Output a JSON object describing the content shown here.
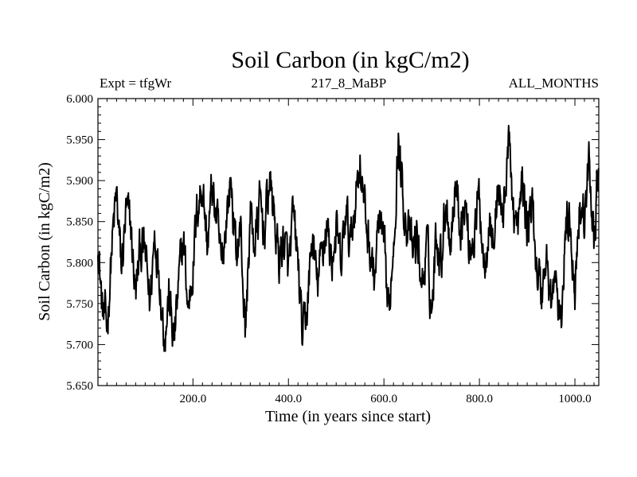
{
  "chart_data": {
    "type": "line",
    "title": "Soil Carbon (in kgC/m2)",
    "left_subtitle": "Expt = tfgWr",
    "center_subtitle": "217_8_MaBP",
    "right_subtitle": "ALL_MONTHS",
    "xlabel": "Time (in years since start)",
    "ylabel": "Soil Carbon (in kgC/m2)",
    "xlim": [
      1,
      1050
    ],
    "ylim": [
      5.65,
      6.0
    ],
    "x_ticks": [
      {
        "value": 200,
        "label": "200.0"
      },
      {
        "value": 400,
        "label": "400.0"
      },
      {
        "value": 600,
        "label": "600.0"
      },
      {
        "value": 800,
        "label": "800.0"
      },
      {
        "value": 1000,
        "label": "1000.0"
      }
    ],
    "y_ticks": [
      {
        "value": 5.65,
        "label": "5.650"
      },
      {
        "value": 5.7,
        "label": "5.700"
      },
      {
        "value": 5.75,
        "label": "5.750"
      },
      {
        "value": 5.8,
        "label": "5.800"
      },
      {
        "value": 5.85,
        "label": "5.850"
      },
      {
        "value": 5.9,
        "label": "5.900"
      },
      {
        "value": 5.95,
        "label": "5.950"
      },
      {
        "value": 6.0,
        "label": "6.000"
      }
    ],
    "series": [
      {
        "name": "Soil Carbon",
        "color": "#000000",
        "x": [
          1,
          10,
          20,
          30,
          40,
          50,
          60,
          70,
          80,
          90,
          100,
          110,
          120,
          130,
          140,
          150,
          160,
          170,
          180,
          190,
          200,
          210,
          220,
          230,
          240,
          250,
          260,
          270,
          280,
          290,
          300,
          310,
          320,
          330,
          340,
          350,
          360,
          370,
          380,
          390,
          400,
          410,
          420,
          430,
          440,
          450,
          460,
          470,
          480,
          490,
          500,
          510,
          520,
          530,
          540,
          550,
          560,
          570,
          580,
          590,
          600,
          610,
          620,
          630,
          640,
          650,
          660,
          670,
          680,
          690,
          700,
          710,
          720,
          730,
          740,
          750,
          760,
          770,
          780,
          790,
          800,
          810,
          820,
          830,
          840,
          850,
          860,
          870,
          880,
          890,
          900,
          910,
          920,
          930,
          940,
          950,
          960,
          970,
          980,
          990,
          1000,
          1010,
          1020,
          1030,
          1040,
          1050
        ],
        "y": [
          5.83,
          5.74,
          5.72,
          5.82,
          5.88,
          5.79,
          5.86,
          5.84,
          5.76,
          5.82,
          5.81,
          5.75,
          5.84,
          5.79,
          5.71,
          5.76,
          5.7,
          5.77,
          5.83,
          5.74,
          5.8,
          5.87,
          5.9,
          5.82,
          5.89,
          5.85,
          5.79,
          5.86,
          5.9,
          5.81,
          5.84,
          5.71,
          5.86,
          5.82,
          5.87,
          5.84,
          5.9,
          5.86,
          5.8,
          5.83,
          5.79,
          5.85,
          5.8,
          5.7,
          5.75,
          5.83,
          5.77,
          5.81,
          5.85,
          5.8,
          5.84,
          5.79,
          5.86,
          5.82,
          5.88,
          5.93,
          5.86,
          5.82,
          5.78,
          5.85,
          5.81,
          5.73,
          5.83,
          5.95,
          5.88,
          5.84,
          5.81,
          5.83,
          5.77,
          5.82,
          5.74,
          5.84,
          5.81,
          5.88,
          5.83,
          5.9,
          5.85,
          5.87,
          5.82,
          5.84,
          5.88,
          5.8,
          5.86,
          5.82,
          5.9,
          5.85,
          5.95,
          5.88,
          5.83,
          5.9,
          5.84,
          5.87,
          5.8,
          5.76,
          5.81,
          5.75,
          5.78,
          5.71,
          5.84,
          5.86,
          5.77,
          5.88,
          5.85,
          5.92,
          5.83,
          5.93
        ]
      }
    ]
  }
}
